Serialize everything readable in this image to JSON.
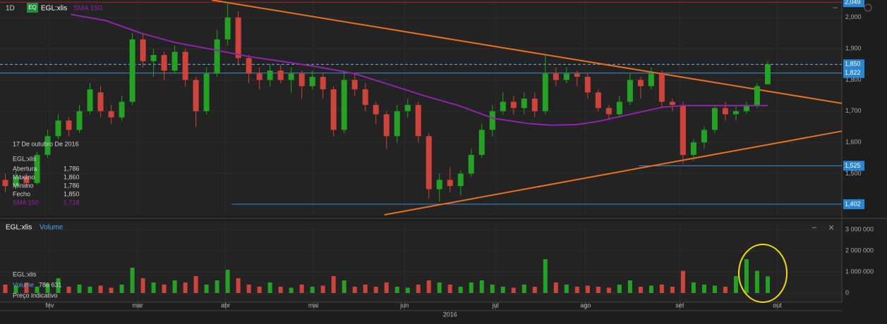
{
  "chart_data": {
    "type": "candlestick",
    "period": "1D",
    "badge": "EQ",
    "symbol": "EGL:xlis",
    "xlim": [
      -0.5,
      79
    ],
    "xticks": [
      {
        "value": 4.2,
        "label": "fev"
      },
      {
        "value": 12.5,
        "label": "mar"
      },
      {
        "value": 20.8,
        "label": "abr"
      },
      {
        "value": 29.1,
        "label": "mai"
      },
      {
        "value": 37.7,
        "label": "jun"
      },
      {
        "value": 46.3,
        "label": "jul"
      },
      {
        "value": 54.8,
        "label": "ago"
      },
      {
        "value": 63.7,
        "label": "set"
      },
      {
        "value": 72.9,
        "label": "out"
      }
    ],
    "xlabel": "2016",
    "ylim": [
      1368,
      2056
    ],
    "yticks": [
      {
        "value": 1500,
        "label": "1,500"
      },
      {
        "value": 1600,
        "label": "1,600"
      },
      {
        "value": 1700,
        "label": "1,700"
      },
      {
        "value": 1800,
        "label": "1,800"
      },
      {
        "value": 1900,
        "label": "1,900"
      },
      {
        "value": 2000,
        "label": "2,000"
      }
    ],
    "grid": true,
    "up_color": "#23a323",
    "down_color": "#d0433b",
    "open": [
      1480,
      1460,
      1490,
      1470,
      1560,
      1620,
      1670,
      1640,
      1700,
      1760,
      1700,
      1680,
      1730,
      1930,
      1860,
      1880,
      1830,
      1890,
      1800,
      1700,
      1820,
      1930,
      2000,
      1870,
      1820,
      1800,
      1830,
      1800,
      1820,
      1780,
      1810,
      1770,
      1640,
      1800,
      1770,
      1720,
      1690,
      1620,
      1700,
      1720,
      1620,
      1450,
      1480,
      1460,
      1500,
      1560,
      1640,
      1700,
      1730,
      1710,
      1740,
      1700,
      1820,
      1800,
      1820,
      1810,
      1760,
      1710,
      1690,
      1730,
      1800,
      1780,
      1820,
      1730,
      1720,
      1560,
      1600,
      1640,
      1710,
      1690,
      1700,
      1720,
      1786
    ],
    "high": [
      1500,
      1510,
      1500,
      1570,
      1640,
      1690,
      1680,
      1720,
      1790,
      1780,
      1720,
      1750,
      1950,
      1950,
      1900,
      1890,
      1910,
      1900,
      1810,
      1840,
      1960,
      2049,
      2020,
      1880,
      1840,
      1850,
      1850,
      1840,
      1830,
      1830,
      1820,
      1780,
      1830,
      1820,
      1790,
      1730,
      1700,
      1720,
      1740,
      1730,
      1630,
      1500,
      1520,
      1510,
      1580,
      1660,
      1720,
      1760,
      1750,
      1760,
      1760,
      1880,
      1840,
      1840,
      1830,
      1820,
      1770,
      1720,
      1750,
      1820,
      1810,
      1840,
      1830,
      1740,
      1730,
      1610,
      1650,
      1720,
      1730,
      1720,
      1730,
      1790,
      1860
    ],
    "low": [
      1440,
      1450,
      1455,
      1465,
      1550,
      1610,
      1620,
      1630,
      1690,
      1680,
      1660,
      1670,
      1720,
      1840,
      1810,
      1800,
      1820,
      1780,
      1650,
      1690,
      1810,
      1910,
      1850,
      1790,
      1770,
      1780,
      1790,
      1760,
      1740,
      1770,
      1740,
      1620,
      1630,
      1750,
      1700,
      1660,
      1580,
      1600,
      1680,
      1600,
      1420,
      1410,
      1440,
      1430,
      1490,
      1550,
      1620,
      1690,
      1690,
      1690,
      1680,
      1690,
      1780,
      1790,
      1780,
      1740,
      1700,
      1670,
      1680,
      1720,
      1740,
      1770,
      1710,
      1700,
      1530,
      1540,
      1580,
      1630,
      1670,
      1670,
      1690,
      1710,
      1786
    ],
    "close": [
      1460,
      1490,
      1470,
      1560,
      1620,
      1670,
      1640,
      1700,
      1770,
      1700,
      1680,
      1730,
      1930,
      1860,
      1880,
      1830,
      1890,
      1800,
      1700,
      1820,
      1930,
      2000,
      1870,
      1820,
      1800,
      1830,
      1800,
      1820,
      1780,
      1810,
      1770,
      1640,
      1800,
      1770,
      1720,
      1690,
      1620,
      1700,
      1720,
      1620,
      1450,
      1480,
      1460,
      1500,
      1560,
      1640,
      1700,
      1730,
      1710,
      1740,
      1700,
      1820,
      1800,
      1820,
      1810,
      1760,
      1710,
      1690,
      1730,
      1800,
      1780,
      1820,
      1730,
      1720,
      1560,
      1600,
      1640,
      1710,
      1690,
      1700,
      1720,
      1780,
      1850
    ],
    "sma": {
      "name": "SMA 150",
      "color": "#8e24a8",
      "x": [
        6.2,
        9.5,
        12.8,
        16,
        19.5,
        23,
        26,
        29.5,
        33,
        36.2,
        39.5,
        42.8,
        46.1,
        49.5,
        51.5,
        54,
        56.1,
        59,
        62.1,
        64,
        66,
        69,
        72
      ],
      "values": [
        2010,
        1990,
        1950,
        1920,
        1898,
        1875,
        1860,
        1842,
        1820,
        1786,
        1750,
        1718,
        1677,
        1660,
        1655,
        1657,
        1668,
        1690,
        1713,
        1718,
        1718,
        1718,
        1718
      ]
    },
    "trendlines": {
      "color": "#e8701f",
      "lines": [
        {
          "x": [
            19.5,
            79
          ],
          "y": [
            2056,
            1725
          ]
        },
        {
          "x": [
            35.8,
            79
          ],
          "y": [
            1368,
            1636
          ]
        }
      ]
    },
    "levels": [
      {
        "value": 2049,
        "label": "2,049",
        "color": "#b01c2e",
        "from": -0.5
      },
      {
        "value": 1850,
        "label": "1,850",
        "color": "#6fb7ea",
        "from": -0.5,
        "dashed": true
      },
      {
        "value": 1822,
        "label": "1,822",
        "color": "#3d8fd0",
        "from": -0.5
      },
      {
        "value": 1525,
        "label": "1,525",
        "color": "#3d8fd0",
        "from": 59.8
      },
      {
        "value": 1402,
        "label": "1,402",
        "color": "#3d8fd0",
        "from": 21.4
      }
    ],
    "info": {
      "date": "17 De outubro De 2016",
      "symbol": "EGL:xlis",
      "rows": [
        {
          "label": "Abertura",
          "value": "1,786"
        },
        {
          "label": "Máximo",
          "value": "1,860"
        },
        {
          "label": "Mínimo",
          "value": "1,786"
        },
        {
          "label": "Fecho",
          "value": "1,850"
        },
        {
          "label": "SMA 150",
          "value": "1,718",
          "color": "#8e24a8"
        }
      ]
    },
    "volume": {
      "symbol": "EGL:xlis",
      "title": "Volume",
      "values": [
        400000,
        350000,
        500000,
        300000,
        450000,
        700000,
        300000,
        400000,
        300000,
        350000,
        250000,
        400000,
        1200000,
        700000,
        500000,
        400000,
        600000,
        500000,
        800000,
        400000,
        600000,
        1100000,
        700000,
        400000,
        300000,
        500000,
        300000,
        250000,
        400000,
        300000,
        350000,
        800000,
        600000,
        300000,
        400000,
        300000,
        500000,
        300000,
        250000,
        400000,
        600000,
        500000,
        400000,
        300000,
        500000,
        600000,
        400000,
        300000,
        250000,
        400000,
        300000,
        1600000,
        500000,
        400000,
        300000,
        350000,
        300000,
        250000,
        400000,
        600000,
        300000,
        350000,
        400000,
        300000,
        1050000,
        500000,
        400000,
        350000,
        300000,
        800000,
        1600000,
        1050000,
        786631
      ],
      "ylim": [
        -400000,
        3370000
      ],
      "yticks": [
        {
          "value": 3000000,
          "label": "3 000 000"
        },
        {
          "value": 2000000,
          "label": "2 000 000"
        },
        {
          "value": 1000000,
          "label": "1 000 000"
        },
        0
      ],
      "legend": {
        "symbol": "EGL:xlis",
        "name": "Volume",
        "value": "786 631",
        "note": "Preço indicativo"
      }
    }
  }
}
